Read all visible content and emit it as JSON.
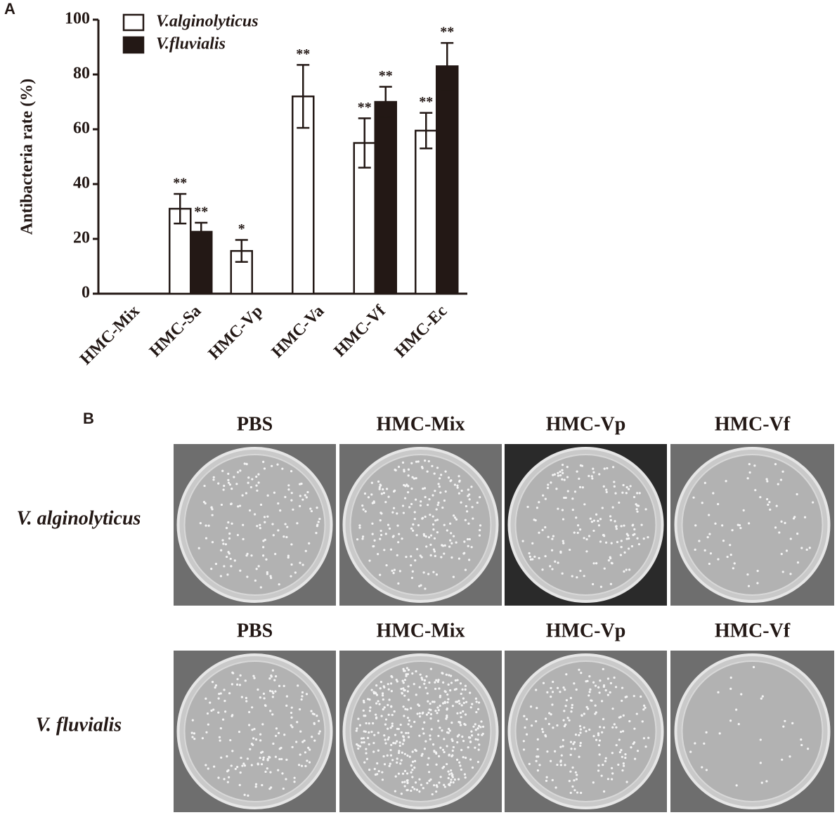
{
  "chart_data": {
    "type": "bar",
    "panel_label": "A",
    "ylabel": "Antibacteria rate (%)",
    "categories": [
      "HMC-Mix",
      "HMC-Sa",
      "HMC-Vp",
      "HMC-Va",
      "HMC-Vf",
      "HMC-Ec"
    ],
    "series": [
      {
        "name": "V.alginolyticus",
        "color": "#ffffff",
        "values": [
          0,
          31,
          15.6,
          72,
          55,
          59.5
        ],
        "errors": [
          0,
          5.4,
          4,
          11.5,
          9,
          6.5
        ],
        "significance": [
          null,
          "**",
          "*",
          "**",
          "**",
          "**"
        ]
      },
      {
        "name": "V.fluvialis",
        "color": "#231815",
        "values": [
          0,
          22.6,
          0,
          0,
          70,
          83
        ],
        "errors": [
          0,
          3.3,
          0,
          0,
          5.5,
          8.5
        ],
        "significance": [
          null,
          "**",
          null,
          null,
          "**",
          "**"
        ]
      }
    ],
    "ylim": [
      0,
      100
    ],
    "yticks": [
      0,
      20,
      40,
      60,
      80,
      100
    ],
    "legend": "top-left"
  },
  "panel_b": {
    "panel_label": "B",
    "rows": [
      {
        "label": "V. alginolyticus",
        "columns": [
          "PBS",
          "HMC-Mix",
          "HMC-Vp",
          "HMC-Vf"
        ]
      },
      {
        "label": "V. fluvialis",
        "columns": [
          "PBS",
          "HMC-Mix",
          "HMC-Vp",
          "HMC-Vf"
        ]
      }
    ]
  }
}
